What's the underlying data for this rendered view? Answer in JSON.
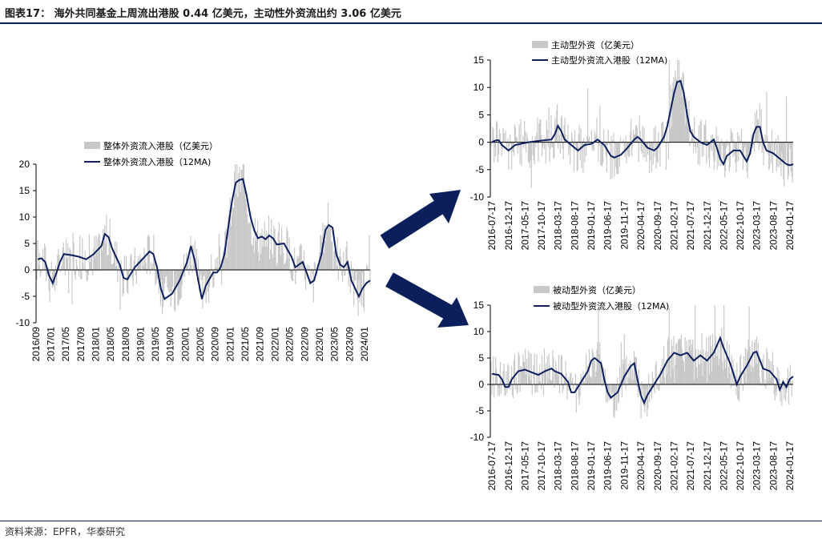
{
  "figure_title": "图表17：  海外共同基金上周流出港股 0.44 亿美元，主动性外资流出约 3.06 亿美元",
  "source": "资料来源：EPFR，华泰研究",
  "colors": {
    "bar": "#c8c8c8",
    "line": "#0d1f5c",
    "arrow": "#0a1f5c",
    "axis": "#000000"
  },
  "chart_data": [
    {
      "id": "overall",
      "type": "bar+line",
      "legend": [
        "整体外资流入港股（亿美元）",
        "整体外资流入港股（12MA)"
      ],
      "ylim": [
        -10,
        20
      ],
      "yticks": [
        -10,
        -5,
        0,
        5,
        10,
        15,
        20
      ],
      "xticks": [
        "2016/09",
        "2017/01",
        "2017/05",
        "2017/09",
        "2018/01",
        "2018/05",
        "2018/09",
        "2019/01",
        "2019/05",
        "2019/09",
        "2020/01",
        "2020/05",
        "2020/09",
        "2021/01",
        "2021/05",
        "2021/09",
        "2022/01",
        "2022/05",
        "2022/09",
        "2023/01",
        "2023/05",
        "2023/09",
        "2024/01"
      ],
      "x_range": [
        "2016-09-01",
        "2024-02-15"
      ],
      "line": [
        [
          "2016-09",
          2.0
        ],
        [
          "2016-10",
          2.2
        ],
        [
          "2016-11",
          1.5
        ],
        [
          "2016-12",
          -1.0
        ],
        [
          "2017-01",
          -2.5
        ],
        [
          "2017-02",
          -0.5
        ],
        [
          "2017-03",
          1.5
        ],
        [
          "2017-04",
          3.0
        ],
        [
          "2017-06",
          2.8
        ],
        [
          "2017-08",
          2.5
        ],
        [
          "2017-10",
          2.0
        ],
        [
          "2017-12",
          3.0
        ],
        [
          "2018-02",
          4.5
        ],
        [
          "2018-03",
          6.8
        ],
        [
          "2018-04",
          6.2
        ],
        [
          "2018-05",
          4.0
        ],
        [
          "2018-07",
          1.0
        ],
        [
          "2018-08",
          -1.5
        ],
        [
          "2018-09",
          -1.8
        ],
        [
          "2018-11",
          0.5
        ],
        [
          "2019-01",
          2.0
        ],
        [
          "2019-03",
          3.5
        ],
        [
          "2019-04",
          3.0
        ],
        [
          "2019-05",
          0.5
        ],
        [
          "2019-06",
          -3.5
        ],
        [
          "2019-07",
          -5.5
        ],
        [
          "2019-09",
          -4.5
        ],
        [
          "2019-11",
          -2.0
        ],
        [
          "2020-01",
          1.5
        ],
        [
          "2020-02",
          4.5
        ],
        [
          "2020-03",
          2.0
        ],
        [
          "2020-04",
          -2.0
        ],
        [
          "2020-05",
          -5.5
        ],
        [
          "2020-06",
          -3.0
        ],
        [
          "2020-08",
          -0.5
        ],
        [
          "2020-09",
          -0.5
        ],
        [
          "2020-10",
          0.5
        ],
        [
          "2020-11",
          3.0
        ],
        [
          "2020-12",
          8.0
        ],
        [
          "2021-01",
          13.0
        ],
        [
          "2021-02",
          16.5
        ],
        [
          "2021-03",
          17.0
        ],
        [
          "2021-04",
          17.2
        ],
        [
          "2021-05",
          14.0
        ],
        [
          "2021-06",
          10.0
        ],
        [
          "2021-07",
          7.5
        ],
        [
          "2021-08",
          6.0
        ],
        [
          "2021-09",
          6.3
        ],
        [
          "2021-10",
          5.8
        ],
        [
          "2021-11",
          6.5
        ],
        [
          "2021-12",
          6.0
        ],
        [
          "2022-01",
          4.8
        ],
        [
          "2022-03",
          5.0
        ],
        [
          "2022-05",
          2.5
        ],
        [
          "2022-06",
          0.5
        ],
        [
          "2022-08",
          1.5
        ],
        [
          "2022-09",
          -0.5
        ],
        [
          "2022-10",
          -2.5
        ],
        [
          "2022-11",
          -2.0
        ],
        [
          "2022-12",
          0.5
        ],
        [
          "2023-01",
          3.0
        ],
        [
          "2023-02",
          7.5
        ],
        [
          "2023-03",
          8.5
        ],
        [
          "2023-04",
          8.0
        ],
        [
          "2023-05",
          3.0
        ],
        [
          "2023-06",
          1.0
        ],
        [
          "2023-07",
          0.5
        ],
        [
          "2023-08",
          1.5
        ],
        [
          "2023-09",
          -2.0
        ],
        [
          "2023-10",
          -3.5
        ],
        [
          "2023-11",
          -5.0
        ],
        [
          "2023-12",
          -3.5
        ],
        [
          "2024-01",
          -2.5
        ],
        [
          "2024-02",
          -2.0
        ]
      ]
    },
    {
      "id": "active",
      "type": "bar+line",
      "legend": [
        "主动型外资（亿美元）",
        "主动型外资流入港股（12MA)"
      ],
      "ylim": [
        -10,
        15
      ],
      "yticks": [
        -10,
        -5,
        0,
        5,
        10,
        15
      ],
      "xticks": [
        "2016-07-17",
        "2016-12-17",
        "2017-05-17",
        "2017-10-17",
        "2018-03-17",
        "2018-08-17",
        "2019-01-17",
        "2019-06-17",
        "2019-11-17",
        "2020-04-17",
        "2020-09-17",
        "2021-02-17",
        "2021-07-17",
        "2021-12-17",
        "2022-05-17",
        "2022-10-17",
        "2023-03-17",
        "2023-08-17",
        "2024-01-17"
      ],
      "x_range": [
        "2016-07-01",
        "2024-02-15"
      ],
      "line": [
        [
          "2016-07",
          0.0
        ],
        [
          "2016-08",
          0.3
        ],
        [
          "2016-09",
          0.4
        ],
        [
          "2016-10",
          -0.5
        ],
        [
          "2016-12",
          -1.5
        ],
        [
          "2017-02",
          -0.5
        ],
        [
          "2017-06",
          0.0
        ],
        [
          "2017-10",
          0.3
        ],
        [
          "2018-01",
          0.5
        ],
        [
          "2018-02",
          1.5
        ],
        [
          "2018-03",
          3.0
        ],
        [
          "2018-04",
          2.0
        ],
        [
          "2018-05",
          0.5
        ],
        [
          "2018-07",
          -0.5
        ],
        [
          "2018-09",
          -1.5
        ],
        [
          "2018-11",
          -0.5
        ],
        [
          "2019-01",
          -0.3
        ],
        [
          "2019-03",
          0.5
        ],
        [
          "2019-05",
          -0.5
        ],
        [
          "2019-07",
          -2.5
        ],
        [
          "2019-08",
          -2.8
        ],
        [
          "2019-10",
          -2.3
        ],
        [
          "2019-12",
          -1.0
        ],
        [
          "2020-02",
          0.5
        ],
        [
          "2020-03",
          1.0
        ],
        [
          "2020-04",
          0.5
        ],
        [
          "2020-06",
          -1.0
        ],
        [
          "2020-08",
          -1.5
        ],
        [
          "2020-09",
          -1.0
        ],
        [
          "2020-10",
          0.0
        ],
        [
          "2020-11",
          1.0
        ],
        [
          "2020-12",
          3.0
        ],
        [
          "2021-01",
          6.0
        ],
        [
          "2021-02",
          9.0
        ],
        [
          "2021-03",
          11.0
        ],
        [
          "2021-04",
          11.2
        ],
        [
          "2021-05",
          9.0
        ],
        [
          "2021-06",
          5.0
        ],
        [
          "2021-07",
          2.0
        ],
        [
          "2021-08",
          1.0
        ],
        [
          "2021-10",
          0.0
        ],
        [
          "2021-12",
          -0.5
        ],
        [
          "2022-02",
          0.5
        ],
        [
          "2022-03",
          -1.0
        ],
        [
          "2022-04",
          -3.0
        ],
        [
          "2022-05",
          -4.0
        ],
        [
          "2022-06",
          -2.5
        ],
        [
          "2022-08",
          -1.5
        ],
        [
          "2022-10",
          -1.5
        ],
        [
          "2022-12",
          -3.5
        ],
        [
          "2023-01",
          -2.0
        ],
        [
          "2023-02",
          1.5
        ],
        [
          "2023-03",
          2.8
        ],
        [
          "2023-04",
          2.8
        ],
        [
          "2023-05",
          0.0
        ],
        [
          "2023-06",
          -1.5
        ],
        [
          "2023-08",
          -2.0
        ],
        [
          "2023-10",
          -3.0
        ],
        [
          "2023-12",
          -4.0
        ],
        [
          "2024-01",
          -4.2
        ],
        [
          "2024-02",
          -4.0
        ]
      ]
    },
    {
      "id": "passive",
      "type": "bar+line",
      "legend": [
        "被动型外资（亿美元）",
        "被动型外资流入港股（12MA)"
      ],
      "ylim": [
        -10,
        15
      ],
      "yticks": [
        -10,
        -5,
        0,
        5,
        10,
        15
      ],
      "xticks": [
        "2016-07-17",
        "2016-12-17",
        "2017-05-17",
        "2017-10-17",
        "2018-03-17",
        "2018-08-17",
        "2019-01-17",
        "2019-06-17",
        "2019-11-17",
        "2020-04-17",
        "2020-09-17",
        "2021-02-17",
        "2021-07-17",
        "2021-12-17",
        "2022-05-17",
        "2022-10-17",
        "2023-03-17",
        "2023-08-17",
        "2024-01-17"
      ],
      "x_range": [
        "2016-07-01",
        "2024-02-15"
      ],
      "line": [
        [
          "2016-07",
          2.0
        ],
        [
          "2016-09",
          1.8
        ],
        [
          "2016-10",
          1.0
        ],
        [
          "2016-11",
          -0.5
        ],
        [
          "2016-12",
          -0.5
        ],
        [
          "2017-01",
          1.0
        ],
        [
          "2017-03",
          2.5
        ],
        [
          "2017-05",
          2.8
        ],
        [
          "2017-07",
          2.3
        ],
        [
          "2017-09",
          1.8
        ],
        [
          "2017-11",
          2.5
        ],
        [
          "2018-01",
          3.0
        ],
        [
          "2018-02",
          2.5
        ],
        [
          "2018-04",
          2.0
        ],
        [
          "2018-06",
          0.5
        ],
        [
          "2018-07",
          -1.5
        ],
        [
          "2018-08",
          -1.5
        ],
        [
          "2018-10",
          0.5
        ],
        [
          "2018-12",
          2.5
        ],
        [
          "2019-01",
          4.5
        ],
        [
          "2019-02",
          5.0
        ],
        [
          "2019-04",
          4.0
        ],
        [
          "2019-05",
          1.0
        ],
        [
          "2019-06",
          -1.5
        ],
        [
          "2019-07",
          -2.5
        ],
        [
          "2019-09",
          -1.5
        ],
        [
          "2019-11",
          1.5
        ],
        [
          "2020-01",
          3.5
        ],
        [
          "2020-02",
          4.0
        ],
        [
          "2020-03",
          1.0
        ],
        [
          "2020-04",
          -2.0
        ],
        [
          "2020-05",
          -3.5
        ],
        [
          "2020-06",
          -2.0
        ],
        [
          "2020-08",
          0.0
        ],
        [
          "2020-10",
          2.0
        ],
        [
          "2020-12",
          4.5
        ],
        [
          "2021-02",
          6.0
        ],
        [
          "2021-04",
          5.5
        ],
        [
          "2021-06",
          6.0
        ],
        [
          "2021-08",
          4.5
        ],
        [
          "2021-10",
          5.5
        ],
        [
          "2021-12",
          4.5
        ],
        [
          "2022-02",
          6.0
        ],
        [
          "2022-04",
          8.8
        ],
        [
          "2022-05",
          7.0
        ],
        [
          "2022-07",
          4.0
        ],
        [
          "2022-08",
          2.0
        ],
        [
          "2022-09",
          0.0
        ],
        [
          "2022-10",
          1.5
        ],
        [
          "2022-12",
          3.5
        ],
        [
          "2023-02",
          6.0
        ],
        [
          "2023-03",
          6.2
        ],
        [
          "2023-05",
          3.0
        ],
        [
          "2023-07",
          2.5
        ],
        [
          "2023-09",
          1.0
        ],
        [
          "2023-10",
          -1.0
        ],
        [
          "2023-11",
          0.5
        ],
        [
          "2023-12",
          -0.5
        ],
        [
          "2024-01",
          1.0
        ],
        [
          "2024-02",
          1.5
        ]
      ]
    }
  ]
}
